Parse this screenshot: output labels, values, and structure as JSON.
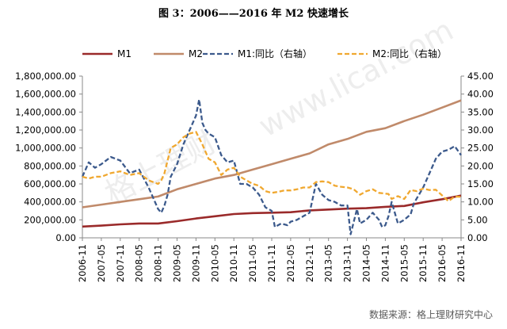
{
  "title": "图 3：2006——2016 年 M2 快速增长",
  "source": "数据来源：格上理财研究中心",
  "watermark": {
    "cn": "格上理财",
    "en": "www.licai.com"
  },
  "colors": {
    "m1": "#9a2a2a",
    "m2": "#c08a6a",
    "m1_yoy": "#3c5a8c",
    "m2_yoy": "#f0a830"
  },
  "chart_data": {
    "type": "line",
    "legend_position": "top",
    "grid": false,
    "left_axis": {
      "range": [
        0,
        1800000
      ],
      "ticks": [
        "0.00",
        "200,000.00",
        "400,000.00",
        "600,000.00",
        "800,000.00",
        "1,000,000.00",
        "1,200,000.00",
        "1,400,000.00",
        "1,600,000.00",
        "1,800,000.00"
      ]
    },
    "right_axis": {
      "range": [
        0,
        45
      ],
      "ticks": [
        "0.00",
        "5.00",
        "10.00",
        "15.00",
        "20.00",
        "25.00",
        "30.00",
        "35.00",
        "40.00",
        "45.00"
      ]
    },
    "x_tick_labels": [
      "2006-11",
      "2007-05",
      "2007-11",
      "2008-05",
      "2008-11",
      "2009-05",
      "2009-11",
      "2010-05",
      "2010-11",
      "2011-05",
      "2011-11",
      "2012-05",
      "2012-11",
      "2013-05",
      "2013-11",
      "2014-05",
      "2014-11",
      "2015-05",
      "2015-11",
      "2016-05",
      "2016-11"
    ],
    "series": [
      {
        "name": "M1",
        "axis": "left",
        "style": "solid",
        "points": [
          [
            "2006-11",
            125000
          ],
          [
            "2007-05",
            136000
          ],
          [
            "2007-11",
            150000
          ],
          [
            "2008-05",
            160000
          ],
          [
            "2008-11",
            160000
          ],
          [
            "2009-05",
            185000
          ],
          [
            "2009-11",
            215000
          ],
          [
            "2010-05",
            240000
          ],
          [
            "2010-11",
            265000
          ],
          [
            "2011-05",
            275000
          ],
          [
            "2011-11",
            280000
          ],
          [
            "2012-05",
            285000
          ],
          [
            "2012-11",
            305000
          ],
          [
            "2013-05",
            315000
          ],
          [
            "2013-11",
            325000
          ],
          [
            "2014-05",
            330000
          ],
          [
            "2014-11",
            345000
          ],
          [
            "2015-05",
            355000
          ],
          [
            "2015-11",
            395000
          ],
          [
            "2016-05",
            430000
          ],
          [
            "2016-11",
            470000
          ]
        ]
      },
      {
        "name": "M2",
        "axis": "left",
        "style": "solid",
        "points": [
          [
            "2006-11",
            340000
          ],
          [
            "2007-05",
            370000
          ],
          [
            "2007-11",
            400000
          ],
          [
            "2008-05",
            430000
          ],
          [
            "2008-11",
            460000
          ],
          [
            "2009-05",
            540000
          ],
          [
            "2009-11",
            600000
          ],
          [
            "2010-05",
            660000
          ],
          [
            "2010-11",
            700000
          ],
          [
            "2011-05",
            760000
          ],
          [
            "2011-11",
            820000
          ],
          [
            "2012-05",
            880000
          ],
          [
            "2012-11",
            940000
          ],
          [
            "2013-05",
            1040000
          ],
          [
            "2013-11",
            1100000
          ],
          [
            "2014-05",
            1180000
          ],
          [
            "2014-11",
            1220000
          ],
          [
            "2015-05",
            1300000
          ],
          [
            "2015-11",
            1370000
          ],
          [
            "2016-05",
            1450000
          ],
          [
            "2016-11",
            1530000
          ]
        ]
      },
      {
        "name": "M1:同比（右轴）",
        "axis": "right",
        "style": "dashed",
        "points": [
          [
            "2006-11",
            17
          ],
          [
            "2007-01",
            21
          ],
          [
            "2007-03",
            19.5
          ],
          [
            "2007-05",
            20.5
          ],
          [
            "2007-08",
            22.5
          ],
          [
            "2007-11",
            21.5
          ],
          [
            "2008-02",
            18
          ],
          [
            "2008-05",
            19
          ],
          [
            "2008-08",
            14
          ],
          [
            "2008-11",
            8
          ],
          [
            "2008-12",
            7
          ],
          [
            "2009-01",
            9
          ],
          [
            "2009-02",
            12
          ],
          [
            "2009-03",
            17
          ],
          [
            "2009-05",
            20.5
          ],
          [
            "2009-07",
            26
          ],
          [
            "2009-09",
            30
          ],
          [
            "2009-11",
            34
          ],
          [
            "2009-12",
            38.5
          ],
          [
            "2010-01",
            32
          ],
          [
            "2010-02",
            30
          ],
          [
            "2010-03",
            29
          ],
          [
            "2010-05",
            28
          ],
          [
            "2010-07",
            23
          ],
          [
            "2010-09",
            21
          ],
          [
            "2010-11",
            21.5
          ],
          [
            "2011-01",
            15
          ],
          [
            "2011-03",
            15
          ],
          [
            "2011-05",
            14
          ],
          [
            "2011-07",
            12
          ],
          [
            "2011-09",
            8.5
          ],
          [
            "2011-11",
            7.5
          ],
          [
            "2011-12",
            3
          ],
          [
            "2012-02",
            4
          ],
          [
            "2012-04",
            3.5
          ],
          [
            "2012-05",
            4.5
          ],
          [
            "2012-07",
            5
          ],
          [
            "2012-09",
            6
          ],
          [
            "2012-11",
            7
          ],
          [
            "2013-01",
            15
          ],
          [
            "2013-03",
            12
          ],
          [
            "2013-05",
            10.5
          ],
          [
            "2013-07",
            10
          ],
          [
            "2013-09",
            9
          ],
          [
            "2013-11",
            9
          ],
          [
            "2013-12",
            1
          ],
          [
            "2014-02",
            8
          ],
          [
            "2014-03",
            4
          ],
          [
            "2014-05",
            5
          ],
          [
            "2014-07",
            7
          ],
          [
            "2014-09",
            5
          ],
          [
            "2014-10",
            3
          ],
          [
            "2014-11",
            3.5
          ],
          [
            "2014-12",
            6
          ],
          [
            "2015-01",
            10
          ],
          [
            "2015-03",
            4
          ],
          [
            "2015-05",
            5
          ],
          [
            "2015-07",
            6.5
          ],
          [
            "2015-08",
            9.5
          ],
          [
            "2015-09",
            11
          ],
          [
            "2015-11",
            14
          ],
          [
            "2016-01",
            18
          ],
          [
            "2016-03",
            22
          ],
          [
            "2016-05",
            24
          ],
          [
            "2016-07",
            24.5
          ],
          [
            "2016-09",
            25.5
          ],
          [
            "2016-11",
            23
          ]
        ]
      },
      {
        "name": "M2:同比（右轴）",
        "axis": "right",
        "style": "dashed",
        "points": [
          [
            "2006-11",
            17
          ],
          [
            "2007-01",
            16.5
          ],
          [
            "2007-03",
            17
          ],
          [
            "2007-05",
            17
          ],
          [
            "2007-08",
            18
          ],
          [
            "2007-11",
            18.5
          ],
          [
            "2008-02",
            17.5
          ],
          [
            "2008-05",
            18
          ],
          [
            "2008-08",
            16
          ],
          [
            "2008-11",
            15
          ],
          [
            "2008-12",
            16
          ],
          [
            "2009-01",
            18
          ],
          [
            "2009-03",
            25
          ],
          [
            "2009-05",
            26
          ],
          [
            "2009-07",
            28
          ],
          [
            "2009-09",
            29
          ],
          [
            "2009-11",
            29.5
          ],
          [
            "2010-01",
            26
          ],
          [
            "2010-03",
            22
          ],
          [
            "2010-05",
            21
          ],
          [
            "2010-07",
            17.5
          ],
          [
            "2010-09",
            19
          ],
          [
            "2010-11",
            19.5
          ],
          [
            "2011-01",
            17
          ],
          [
            "2011-03",
            16
          ],
          [
            "2011-05",
            15
          ],
          [
            "2011-07",
            14.5
          ],
          [
            "2011-09",
            13
          ],
          [
            "2011-11",
            12.5
          ],
          [
            "2012-01",
            12.8
          ],
          [
            "2012-03",
            13.2
          ],
          [
            "2012-05",
            13.2
          ],
          [
            "2012-07",
            13.5
          ],
          [
            "2012-09",
            14
          ],
          [
            "2012-11",
            14
          ],
          [
            "2013-01",
            15.5
          ],
          [
            "2013-03",
            15.7
          ],
          [
            "2013-05",
            15.5
          ],
          [
            "2013-07",
            14.5
          ],
          [
            "2013-09",
            14.2
          ],
          [
            "2013-11",
            14
          ],
          [
            "2014-01",
            13.5
          ],
          [
            "2014-03",
            12
          ],
          [
            "2014-05",
            13
          ],
          [
            "2014-07",
            13.5
          ],
          [
            "2014-09",
            12.5
          ],
          [
            "2014-11",
            12.3
          ],
          [
            "2014-12",
            12.2
          ],
          [
            "2015-01",
            10.8
          ],
          [
            "2015-03",
            11.6
          ],
          [
            "2015-05",
            10.8
          ],
          [
            "2015-07",
            13.3
          ],
          [
            "2015-09",
            13
          ],
          [
            "2015-11",
            13.7
          ],
          [
            "2016-01",
            13.3
          ],
          [
            "2016-03",
            13.4
          ],
          [
            "2016-05",
            11.8
          ],
          [
            "2016-07",
            10.2
          ],
          [
            "2016-09",
            11.5
          ],
          [
            "2016-11",
            11.4
          ]
        ]
      }
    ]
  }
}
